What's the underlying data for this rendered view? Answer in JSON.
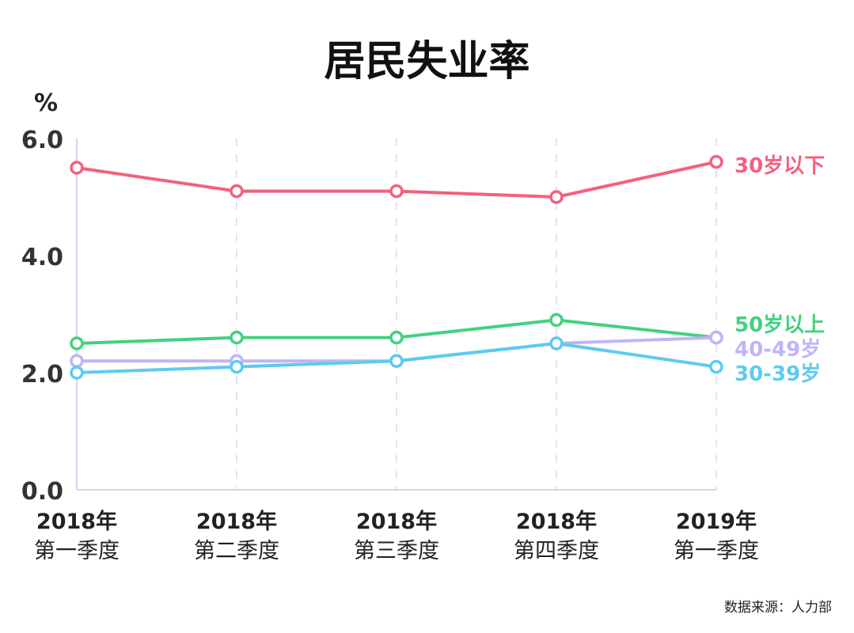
{
  "chart_data": {
    "type": "line",
    "title": "居民失业率",
    "ylabel": "%",
    "ylim": [
      0,
      6
    ],
    "yticks": [
      "0.0",
      "2.0",
      "4.0",
      "6.0"
    ],
    "categories": [
      [
        "2018年",
        "第一季度"
      ],
      [
        "2018年",
        "第二季度"
      ],
      [
        "2018年",
        "第三季度"
      ],
      [
        "2018年",
        "第四季度"
      ],
      [
        "2019年",
        "第一季度"
      ]
    ],
    "grid": "vertical dashed",
    "series": [
      {
        "name": "30岁以下",
        "color": "#f4607f",
        "values": [
          5.5,
          5.1,
          5.1,
          5.0,
          5.6
        ]
      },
      {
        "name": "50岁以上",
        "color": "#43d17f",
        "values": [
          2.5,
          2.6,
          2.6,
          2.9,
          2.6
        ]
      },
      {
        "name": "40-49岁",
        "color": "#c0b4f7",
        "values": [
          2.2,
          2.2,
          2.2,
          2.5,
          2.6
        ]
      },
      {
        "name": "30-39岁",
        "color": "#5ccbef",
        "values": [
          2.0,
          2.1,
          2.2,
          2.5,
          2.1
        ]
      }
    ],
    "source": "数据来源：人力部"
  }
}
